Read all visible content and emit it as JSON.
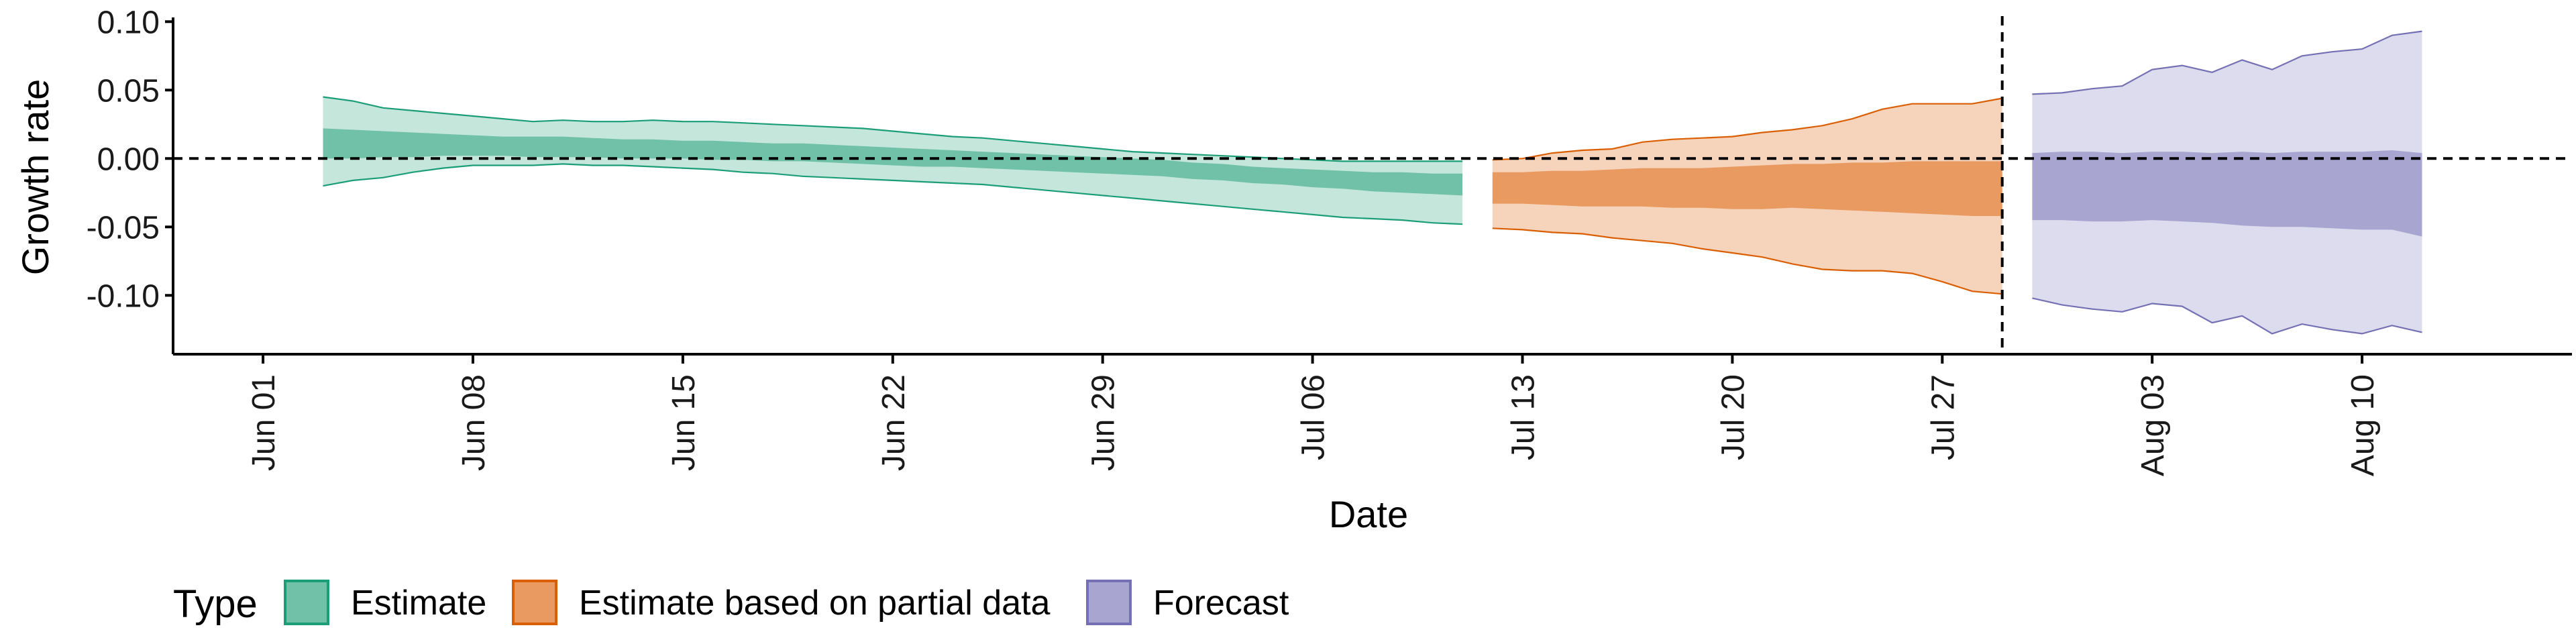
{
  "chart_data": {
    "type": "area",
    "xlabel": "Date",
    "ylabel": "Growth rate",
    "x_axis": {
      "type": "date",
      "range": [
        "2020-05-29",
        "2020-08-17"
      ],
      "ticks": [
        {
          "date": "2020-06-01",
          "label": "Jun 01"
        },
        {
          "date": "2020-06-08",
          "label": "Jun 08"
        },
        {
          "date": "2020-06-15",
          "label": "Jun 15"
        },
        {
          "date": "2020-06-22",
          "label": "Jun 22"
        },
        {
          "date": "2020-06-29",
          "label": "Jun 29"
        },
        {
          "date": "2020-07-06",
          "label": "Jul 06"
        },
        {
          "date": "2020-07-13",
          "label": "Jul 13"
        },
        {
          "date": "2020-07-20",
          "label": "Jul 20"
        },
        {
          "date": "2020-07-27",
          "label": "Jul 27"
        },
        {
          "date": "2020-08-03",
          "label": "Aug 03"
        },
        {
          "date": "2020-08-10",
          "label": "Aug 10"
        }
      ]
    },
    "y_axis": {
      "ylim": [
        -0.143,
        0.107
      ],
      "ticks": [
        {
          "value": 0.1,
          "label": "0.10"
        },
        {
          "value": 0.05,
          "label": "0.05"
        },
        {
          "value": 0.0,
          "label": "0.00"
        },
        {
          "value": -0.05,
          "label": "-0.05"
        },
        {
          "value": -0.1,
          "label": "-0.10"
        }
      ]
    },
    "grid": false,
    "reference_lines": [
      {
        "orientation": "horizontal",
        "value": 0.0,
        "style": "dashed"
      },
      {
        "orientation": "vertical",
        "date": "2020-07-29",
        "style": "dashed"
      }
    ],
    "legend": {
      "title": "Type",
      "position": "bottom-left",
      "entries": [
        {
          "label": "Estimate",
          "fill": "#70c1a7",
          "stroke": "#1b9e77"
        },
        {
          "label": "Estimate based on partial data",
          "fill": "#e89a60",
          "stroke": "#d95f02"
        },
        {
          "label": "Forecast",
          "fill": "#a8a5d1",
          "stroke": "#7570b3"
        }
      ]
    },
    "series": [
      {
        "name": "Estimate",
        "color": "#1b9e77",
        "inner_fill": "#70c1a7",
        "outer_fill": "#c5e6db",
        "points": [
          [
            "2020-06-03",
            -0.02,
            0.045,
            0.0,
            0.022
          ],
          [
            "2020-06-04",
            -0.016,
            0.042,
            0.0,
            0.021
          ],
          [
            "2020-06-05",
            -0.014,
            0.037,
            0.001,
            0.02
          ],
          [
            "2020-06-06",
            -0.01,
            0.035,
            0.001,
            0.019
          ],
          [
            "2020-06-07",
            -0.007,
            0.033,
            0.002,
            0.018
          ],
          [
            "2020-06-08",
            -0.005,
            0.031,
            0.002,
            0.017
          ],
          [
            "2020-06-09",
            -0.005,
            0.029,
            0.002,
            0.016
          ],
          [
            "2020-06-10",
            -0.005,
            0.027,
            0.001,
            0.016
          ],
          [
            "2020-06-11",
            -0.004,
            0.028,
            0.001,
            0.016
          ],
          [
            "2020-06-12",
            -0.005,
            0.027,
            0.001,
            0.015
          ],
          [
            "2020-06-13",
            -0.005,
            0.027,
            0.0,
            0.014
          ],
          [
            "2020-06-14",
            -0.006,
            0.028,
            0.0,
            0.014
          ],
          [
            "2020-06-15",
            -0.007,
            0.027,
            0.0,
            0.013
          ],
          [
            "2020-06-16",
            -0.008,
            0.027,
            -0.001,
            0.013
          ],
          [
            "2020-06-17",
            -0.01,
            0.026,
            -0.001,
            0.012
          ],
          [
            "2020-06-18",
            -0.011,
            0.025,
            -0.002,
            0.011
          ],
          [
            "2020-06-19",
            -0.013,
            0.024,
            -0.002,
            0.011
          ],
          [
            "2020-06-20",
            -0.014,
            0.023,
            -0.003,
            0.01
          ],
          [
            "2020-06-21",
            -0.015,
            0.022,
            -0.004,
            0.009
          ],
          [
            "2020-06-22",
            -0.016,
            0.02,
            -0.005,
            0.008
          ],
          [
            "2020-06-23",
            -0.017,
            0.018,
            -0.006,
            0.007
          ],
          [
            "2020-06-24",
            -0.018,
            0.016,
            -0.006,
            0.006
          ],
          [
            "2020-06-25",
            -0.019,
            0.015,
            -0.007,
            0.005
          ],
          [
            "2020-06-26",
            -0.021,
            0.013,
            -0.008,
            0.004
          ],
          [
            "2020-06-27",
            -0.023,
            0.011,
            -0.009,
            0.003
          ],
          [
            "2020-06-28",
            -0.025,
            0.009,
            -0.01,
            0.002
          ],
          [
            "2020-06-29",
            -0.027,
            0.007,
            -0.011,
            0.001
          ],
          [
            "2020-06-30",
            -0.029,
            0.005,
            -0.012,
            0.0
          ],
          [
            "2020-07-01",
            -0.031,
            0.004,
            -0.013,
            -0.001
          ],
          [
            "2020-07-02",
            -0.033,
            0.003,
            -0.015,
            -0.003
          ],
          [
            "2020-07-03",
            -0.035,
            0.002,
            -0.016,
            -0.004
          ],
          [
            "2020-07-04",
            -0.037,
            0.001,
            -0.018,
            -0.006
          ],
          [
            "2020-07-05",
            -0.039,
            0.0,
            -0.019,
            -0.007
          ],
          [
            "2020-07-06",
            -0.041,
            -0.001,
            -0.021,
            -0.008
          ],
          [
            "2020-07-07",
            -0.043,
            -0.002,
            -0.022,
            -0.009
          ],
          [
            "2020-07-08",
            -0.044,
            -0.002,
            -0.024,
            -0.01
          ],
          [
            "2020-07-09",
            -0.045,
            -0.002,
            -0.025,
            -0.01
          ],
          [
            "2020-07-10",
            -0.047,
            -0.002,
            -0.026,
            -0.011
          ],
          [
            "2020-07-11",
            -0.048,
            -0.002,
            -0.027,
            -0.011
          ]
        ]
      },
      {
        "name": "Estimate based on partial data",
        "color": "#d95f02",
        "inner_fill": "#e89a60",
        "outer_fill": "#f6d4bc",
        "points": [
          [
            "2020-07-12",
            -0.051,
            -0.001,
            -0.033,
            -0.01
          ],
          [
            "2020-07-13",
            -0.052,
            0.0,
            -0.033,
            -0.01
          ],
          [
            "2020-07-14",
            -0.054,
            0.004,
            -0.034,
            -0.009
          ],
          [
            "2020-07-15",
            -0.055,
            0.006,
            -0.035,
            -0.009
          ],
          [
            "2020-07-16",
            -0.058,
            0.007,
            -0.035,
            -0.008
          ],
          [
            "2020-07-17",
            -0.06,
            0.012,
            -0.035,
            -0.007
          ],
          [
            "2020-07-18",
            -0.062,
            0.014,
            -0.036,
            -0.007
          ],
          [
            "2020-07-19",
            -0.066,
            0.015,
            -0.036,
            -0.007
          ],
          [
            "2020-07-20",
            -0.069,
            0.016,
            -0.037,
            -0.006
          ],
          [
            "2020-07-21",
            -0.072,
            0.019,
            -0.037,
            -0.005
          ],
          [
            "2020-07-22",
            -0.077,
            0.021,
            -0.036,
            -0.004
          ],
          [
            "2020-07-23",
            -0.081,
            0.024,
            -0.037,
            -0.004
          ],
          [
            "2020-07-24",
            -0.082,
            0.029,
            -0.038,
            -0.003
          ],
          [
            "2020-07-25",
            -0.082,
            0.036,
            -0.039,
            -0.003
          ],
          [
            "2020-07-26",
            -0.084,
            0.04,
            -0.04,
            -0.002
          ],
          [
            "2020-07-27",
            -0.09,
            0.04,
            -0.041,
            -0.002
          ],
          [
            "2020-07-28",
            -0.097,
            0.04,
            -0.042,
            -0.002
          ],
          [
            "2020-07-29",
            -0.099,
            0.044,
            -0.042,
            -0.002
          ]
        ]
      },
      {
        "name": "Forecast",
        "color": "#7570b3",
        "inner_fill": "#a8a5d1",
        "outer_fill": "#dddcee",
        "points": [
          [
            "2020-07-30",
            -0.102,
            0.047,
            -0.045,
            0.004
          ],
          [
            "2020-07-31",
            -0.107,
            0.048,
            -0.045,
            0.005
          ],
          [
            "2020-08-01",
            -0.11,
            0.051,
            -0.046,
            0.005
          ],
          [
            "2020-08-02",
            -0.112,
            0.053,
            -0.046,
            0.004
          ],
          [
            "2020-08-03",
            -0.106,
            0.065,
            -0.045,
            0.005
          ],
          [
            "2020-08-04",
            -0.108,
            0.068,
            -0.046,
            0.005
          ],
          [
            "2020-08-05",
            -0.12,
            0.063,
            -0.047,
            0.004
          ],
          [
            "2020-08-06",
            -0.115,
            0.072,
            -0.049,
            0.005
          ],
          [
            "2020-08-07",
            -0.128,
            0.065,
            -0.05,
            0.004
          ],
          [
            "2020-08-08",
            -0.121,
            0.075,
            -0.05,
            0.005
          ],
          [
            "2020-08-09",
            -0.125,
            0.078,
            -0.051,
            0.005
          ],
          [
            "2020-08-10",
            -0.128,
            0.08,
            -0.052,
            0.005
          ],
          [
            "2020-08-11",
            -0.122,
            0.09,
            -0.052,
            0.006
          ],
          [
            "2020-08-12",
            -0.127,
            0.093,
            -0.057,
            0.004
          ]
        ]
      }
    ]
  }
}
